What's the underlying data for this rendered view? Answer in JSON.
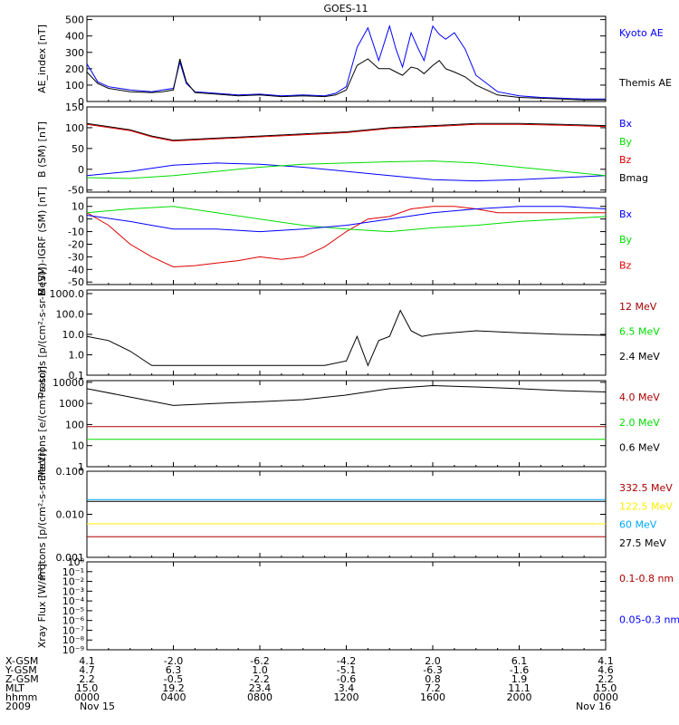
{
  "title": "GOES-11",
  "legend_colors": {
    "black": "#000000",
    "blue": "#0000ff",
    "green": "#00dd00",
    "red": "#dd0000",
    "darkred": "#aa0000",
    "yellow": "#ffee00",
    "cyan": "#00aaff"
  },
  "chart_data": [
    {
      "type": "line",
      "ylabel": "AE_index [nT]",
      "ylim": [
        0,
        520
      ],
      "yscale": "linear",
      "yticks": [
        "500",
        "400",
        "300",
        "200",
        "100",
        "0"
      ],
      "ytick_values": [
        500,
        400,
        300,
        200,
        100,
        0
      ],
      "legend": [
        "Kyoto AE",
        "",
        "Themis AE"
      ],
      "legend_colors": [
        "#0000ff",
        "",
        "#000000"
      ],
      "series": [
        {
          "name": "Kyoto AE",
          "color": "#0000ff",
          "x": [
            0,
            0.5,
            1,
            2,
            3,
            3.5,
            4,
            4.3,
            4.6,
            5,
            6,
            7,
            8,
            9,
            10,
            11,
            11.5,
            12,
            12.5,
            13,
            13.5,
            14,
            14.3,
            14.6,
            15,
            15.3,
            15.6,
            16,
            16.3,
            16.6,
            17,
            17.5,
            18,
            19,
            20,
            21,
            22,
            23,
            24
          ],
          "y": [
            230,
            120,
            90,
            70,
            60,
            70,
            80,
            240,
            110,
            60,
            50,
            40,
            45,
            35,
            40,
            35,
            50,
            90,
            330,
            450,
            250,
            460,
            320,
            210,
            420,
            330,
            250,
            460,
            410,
            380,
            420,
            320,
            160,
            60,
            35,
            25,
            20,
            15,
            15
          ]
        },
        {
          "name": "Themis AE",
          "color": "#000000",
          "x": [
            0,
            0.5,
            1,
            2,
            3,
            3.5,
            4,
            4.3,
            4.6,
            5,
            6,
            7,
            8,
            9,
            10,
            11,
            11.5,
            12,
            12.5,
            13,
            13.5,
            14,
            14.3,
            14.6,
            15,
            15.3,
            15.6,
            16,
            16.3,
            16.6,
            17,
            17.5,
            18,
            19,
            20,
            21,
            22,
            23,
            24
          ],
          "y": [
            180,
            110,
            80,
            60,
            55,
            60,
            70,
            260,
            120,
            55,
            45,
            35,
            40,
            30,
            35,
            30,
            40,
            70,
            220,
            260,
            200,
            200,
            180,
            160,
            210,
            200,
            170,
            220,
            250,
            200,
            180,
            150,
            100,
            40,
            25,
            20,
            15,
            10,
            10
          ]
        }
      ]
    },
    {
      "type": "line",
      "ylabel": "B (SM) [nT]",
      "ylim": [
        -55,
        150
      ],
      "yscale": "linear",
      "yticks": [
        "150",
        "100",
        "50",
        "0",
        "-50"
      ],
      "ytick_values": [
        150,
        100,
        50,
        0,
        -50
      ],
      "legend": [
        "Bx",
        "By",
        "Bz",
        "Bmag"
      ],
      "legend_colors": [
        "#0000ff",
        "#00dd00",
        "#dd0000",
        "#000000"
      ],
      "series": [
        {
          "name": "Bmag",
          "color": "#000000",
          "x": [
            0,
            2,
            3,
            4,
            6,
            8,
            10,
            12,
            14,
            16,
            18,
            20,
            22,
            24
          ],
          "y": [
            110,
            95,
            80,
            70,
            75,
            80,
            85,
            90,
            100,
            105,
            110,
            110,
            108,
            105
          ]
        },
        {
          "name": "Bz",
          "color": "#dd0000",
          "x": [
            0,
            2,
            3,
            4,
            6,
            8,
            10,
            12,
            14,
            16,
            18,
            20,
            22,
            24
          ],
          "y": [
            108,
            93,
            78,
            68,
            73,
            78,
            83,
            88,
            98,
            103,
            108,
            108,
            106,
            103
          ]
        },
        {
          "name": "Bx",
          "color": "#0000ff",
          "x": [
            0,
            2,
            4,
            6,
            8,
            10,
            12,
            14,
            16,
            18,
            20,
            22,
            24
          ],
          "y": [
            -15,
            -5,
            10,
            15,
            12,
            5,
            -5,
            -15,
            -25,
            -28,
            -25,
            -20,
            -15
          ]
        },
        {
          "name": "By",
          "color": "#00dd00",
          "x": [
            0,
            2,
            4,
            6,
            8,
            10,
            12,
            14,
            16,
            18,
            20,
            22,
            24
          ],
          "y": [
            -20,
            -22,
            -15,
            -5,
            5,
            12,
            15,
            18,
            20,
            15,
            5,
            -5,
            -15
          ]
        }
      ]
    },
    {
      "type": "line",
      "ylabel": "B (SM)-IGRF (SM) [nT]",
      "ylim": [
        -52,
        17
      ],
      "yscale": "linear",
      "yticks": [
        "10",
        "0",
        "-10",
        "-20",
        "-30",
        "-40",
        "-50"
      ],
      "ytick_values": [
        10,
        0,
        -10,
        -20,
        -30,
        -40,
        -50
      ],
      "legend": [
        "Bx",
        "By",
        "Bz"
      ],
      "legend_colors": [
        "#0000ff",
        "#00dd00",
        "#dd0000"
      ],
      "series": [
        {
          "name": "Bz",
          "color": "#dd0000",
          "x": [
            0,
            1,
            2,
            3,
            4,
            5,
            6,
            7,
            8,
            9,
            10,
            11,
            12,
            13,
            14,
            15,
            16,
            17,
            18,
            19,
            20,
            22,
            24
          ],
          "y": [
            5,
            -5,
            -20,
            -30,
            -38,
            -37,
            -35,
            -33,
            -30,
            -32,
            -30,
            -22,
            -10,
            0,
            2,
            8,
            10,
            10,
            8,
            5,
            5,
            5,
            5
          ]
        },
        {
          "name": "By",
          "color": "#00dd00",
          "x": [
            0,
            2,
            4,
            6,
            8,
            10,
            12,
            14,
            16,
            18,
            20,
            22,
            24
          ],
          "y": [
            5,
            8,
            10,
            5,
            0,
            -5,
            -8,
            -10,
            -7,
            -5,
            -2,
            0,
            2
          ]
        },
        {
          "name": "Bx",
          "color": "#0000ff",
          "x": [
            0,
            2,
            3,
            4,
            6,
            8,
            10,
            12,
            14,
            16,
            18,
            20,
            22,
            24
          ],
          "y": [
            3,
            -2,
            -5,
            -8,
            -8,
            -10,
            -8,
            -5,
            0,
            5,
            8,
            10,
            10,
            8
          ]
        }
      ]
    },
    {
      "type": "line",
      "ylabel": "Protons [p/(cm²-s-sr-MeV)]",
      "ylim": [
        0.1,
        1500
      ],
      "yscale": "log",
      "yticks": [
        "1000.0",
        "100.0",
        "10.0",
        "1.0",
        "0.1"
      ],
      "ytick_values": [
        1000,
        100,
        10,
        1,
        0.1
      ],
      "legend": [
        "12 MeV",
        "6.5 MeV",
        "2.4 MeV"
      ],
      "legend_colors": [
        "#aa0000",
        "#00dd00",
        "#000000"
      ],
      "series": [
        {
          "name": "2.4 MeV",
          "color": "#000000",
          "x": [
            0,
            1,
            2,
            3,
            4,
            6,
            8,
            10,
            11,
            12,
            12.5,
            13,
            13.5,
            14,
            14.5,
            15,
            15.5,
            16,
            18,
            20,
            22,
            24
          ],
          "y": [
            8,
            5,
            1.5,
            0.3,
            0.3,
            0.3,
            0.3,
            0.3,
            0.3,
            0.5,
            8,
            0.3,
            5,
            8,
            150,
            15,
            8,
            10,
            15,
            12,
            10,
            9
          ]
        }
      ]
    },
    {
      "type": "line",
      "ylabel": "Electrons [e/(cm²-s-sr)]",
      "ylim": [
        1,
        12000
      ],
      "yscale": "log",
      "yticks": [
        "10000",
        "1000",
        "100",
        "10",
        "1"
      ],
      "ytick_values": [
        10000,
        1000,
        100,
        10,
        1
      ],
      "legend": [
        "4.0 MeV",
        "2.0 MeV",
        "0.6 MeV"
      ],
      "legend_colors": [
        "#aa0000",
        "#00dd00",
        "#000000"
      ],
      "series": [
        {
          "name": "0.6 MeV",
          "color": "#000000",
          "x": [
            0,
            2,
            4,
            6,
            8,
            10,
            12,
            14,
            16,
            18,
            20,
            22,
            24
          ],
          "y": [
            5000,
            2000,
            800,
            1000,
            1200,
            1500,
            2500,
            5000,
            7000,
            6000,
            5000,
            4000,
            3500
          ]
        },
        {
          "name": "4.0 MeV",
          "color": "#aa0000",
          "x": [
            0,
            24
          ],
          "y": [
            80,
            80
          ]
        },
        {
          "name": "2.0 MeV",
          "color": "#00dd00",
          "x": [
            0,
            24
          ],
          "y": [
            20,
            20
          ]
        }
      ]
    },
    {
      "type": "line",
      "ylabel": "Protons [p/(cm²-s-sr-MeV)]",
      "ylim": [
        0.001,
        0.1
      ],
      "yscale": "log",
      "yticks": [
        "0.100",
        "0.010",
        "0.001"
      ],
      "ytick_values": [
        0.1,
        0.01,
        0.001
      ],
      "legend": [
        "332.5 MeV",
        "122.5 MeV",
        "60 MeV",
        "27.5 MeV"
      ],
      "legend_colors": [
        "#aa0000",
        "#ffee00",
        "#00aaff",
        "#000000"
      ],
      "series": [
        {
          "name": "27.5 MeV",
          "color": "#000000",
          "x": [
            0,
            24
          ],
          "y": [
            0.02,
            0.02
          ]
        },
        {
          "name": "60 MeV",
          "color": "#00aaff",
          "x": [
            0,
            24
          ],
          "y": [
            0.022,
            0.022
          ]
        },
        {
          "name": "122.5 MeV",
          "color": "#ffee00",
          "x": [
            0,
            24
          ],
          "y": [
            0.006,
            0.006
          ]
        },
        {
          "name": "332.5 MeV",
          "color": "#aa0000",
          "x": [
            0,
            24
          ],
          "y": [
            0.003,
            0.003
          ]
        }
      ]
    },
    {
      "type": "line",
      "ylabel": "Xray Flux [W/m²]",
      "ylim": [
        1e-09,
        1
      ],
      "yscale": "log",
      "yticks": [
        "10⁰",
        "10⁻¹",
        "10⁻²",
        "10⁻³",
        "10⁻⁴",
        "10⁻⁵",
        "10⁻⁶",
        "10⁻⁷",
        "10⁻⁸",
        "10⁻⁹"
      ],
      "ytick_values": [
        1,
        0.1,
        0.01,
        0.001,
        0.0001,
        1e-05,
        1e-06,
        1e-07,
        1e-08,
        1e-09
      ],
      "legend": [
        "0.1-0.8 nm",
        "0.05-0.3 nm"
      ],
      "legend_colors": [
        "#aa0000",
        "#0000ff"
      ],
      "series": []
    }
  ],
  "xaxis": {
    "xlim": [
      0,
      24
    ],
    "tick_hours": [
      0,
      4,
      8,
      12,
      16,
      20,
      24
    ],
    "row_labels": [
      "X-GSM",
      "Y-GSM",
      "Z-GSM",
      "MLT",
      "hhmm",
      "2009"
    ],
    "columns": [
      [
        "4.1",
        "4.7",
        "2.2",
        "15.0",
        "0000",
        "Nov 15"
      ],
      [
        "-2.0",
        "6.3",
        "-0.5",
        "19.2",
        "0400",
        ""
      ],
      [
        "-6.2",
        "1.0",
        "-2.2",
        "23.4",
        "0800",
        ""
      ],
      [
        "-4.2",
        "-5.1",
        "-0.6",
        "3.4",
        "1200",
        ""
      ],
      [
        "2.0",
        "-6.3",
        "0.8",
        "7.2",
        "1600",
        ""
      ],
      [
        "6.1",
        "-1.6",
        "1.9",
        "11.1",
        "2000",
        ""
      ],
      [
        "4.1",
        "4.6",
        "2.2",
        "15.0",
        "0000",
        "Nov 16"
      ]
    ]
  }
}
